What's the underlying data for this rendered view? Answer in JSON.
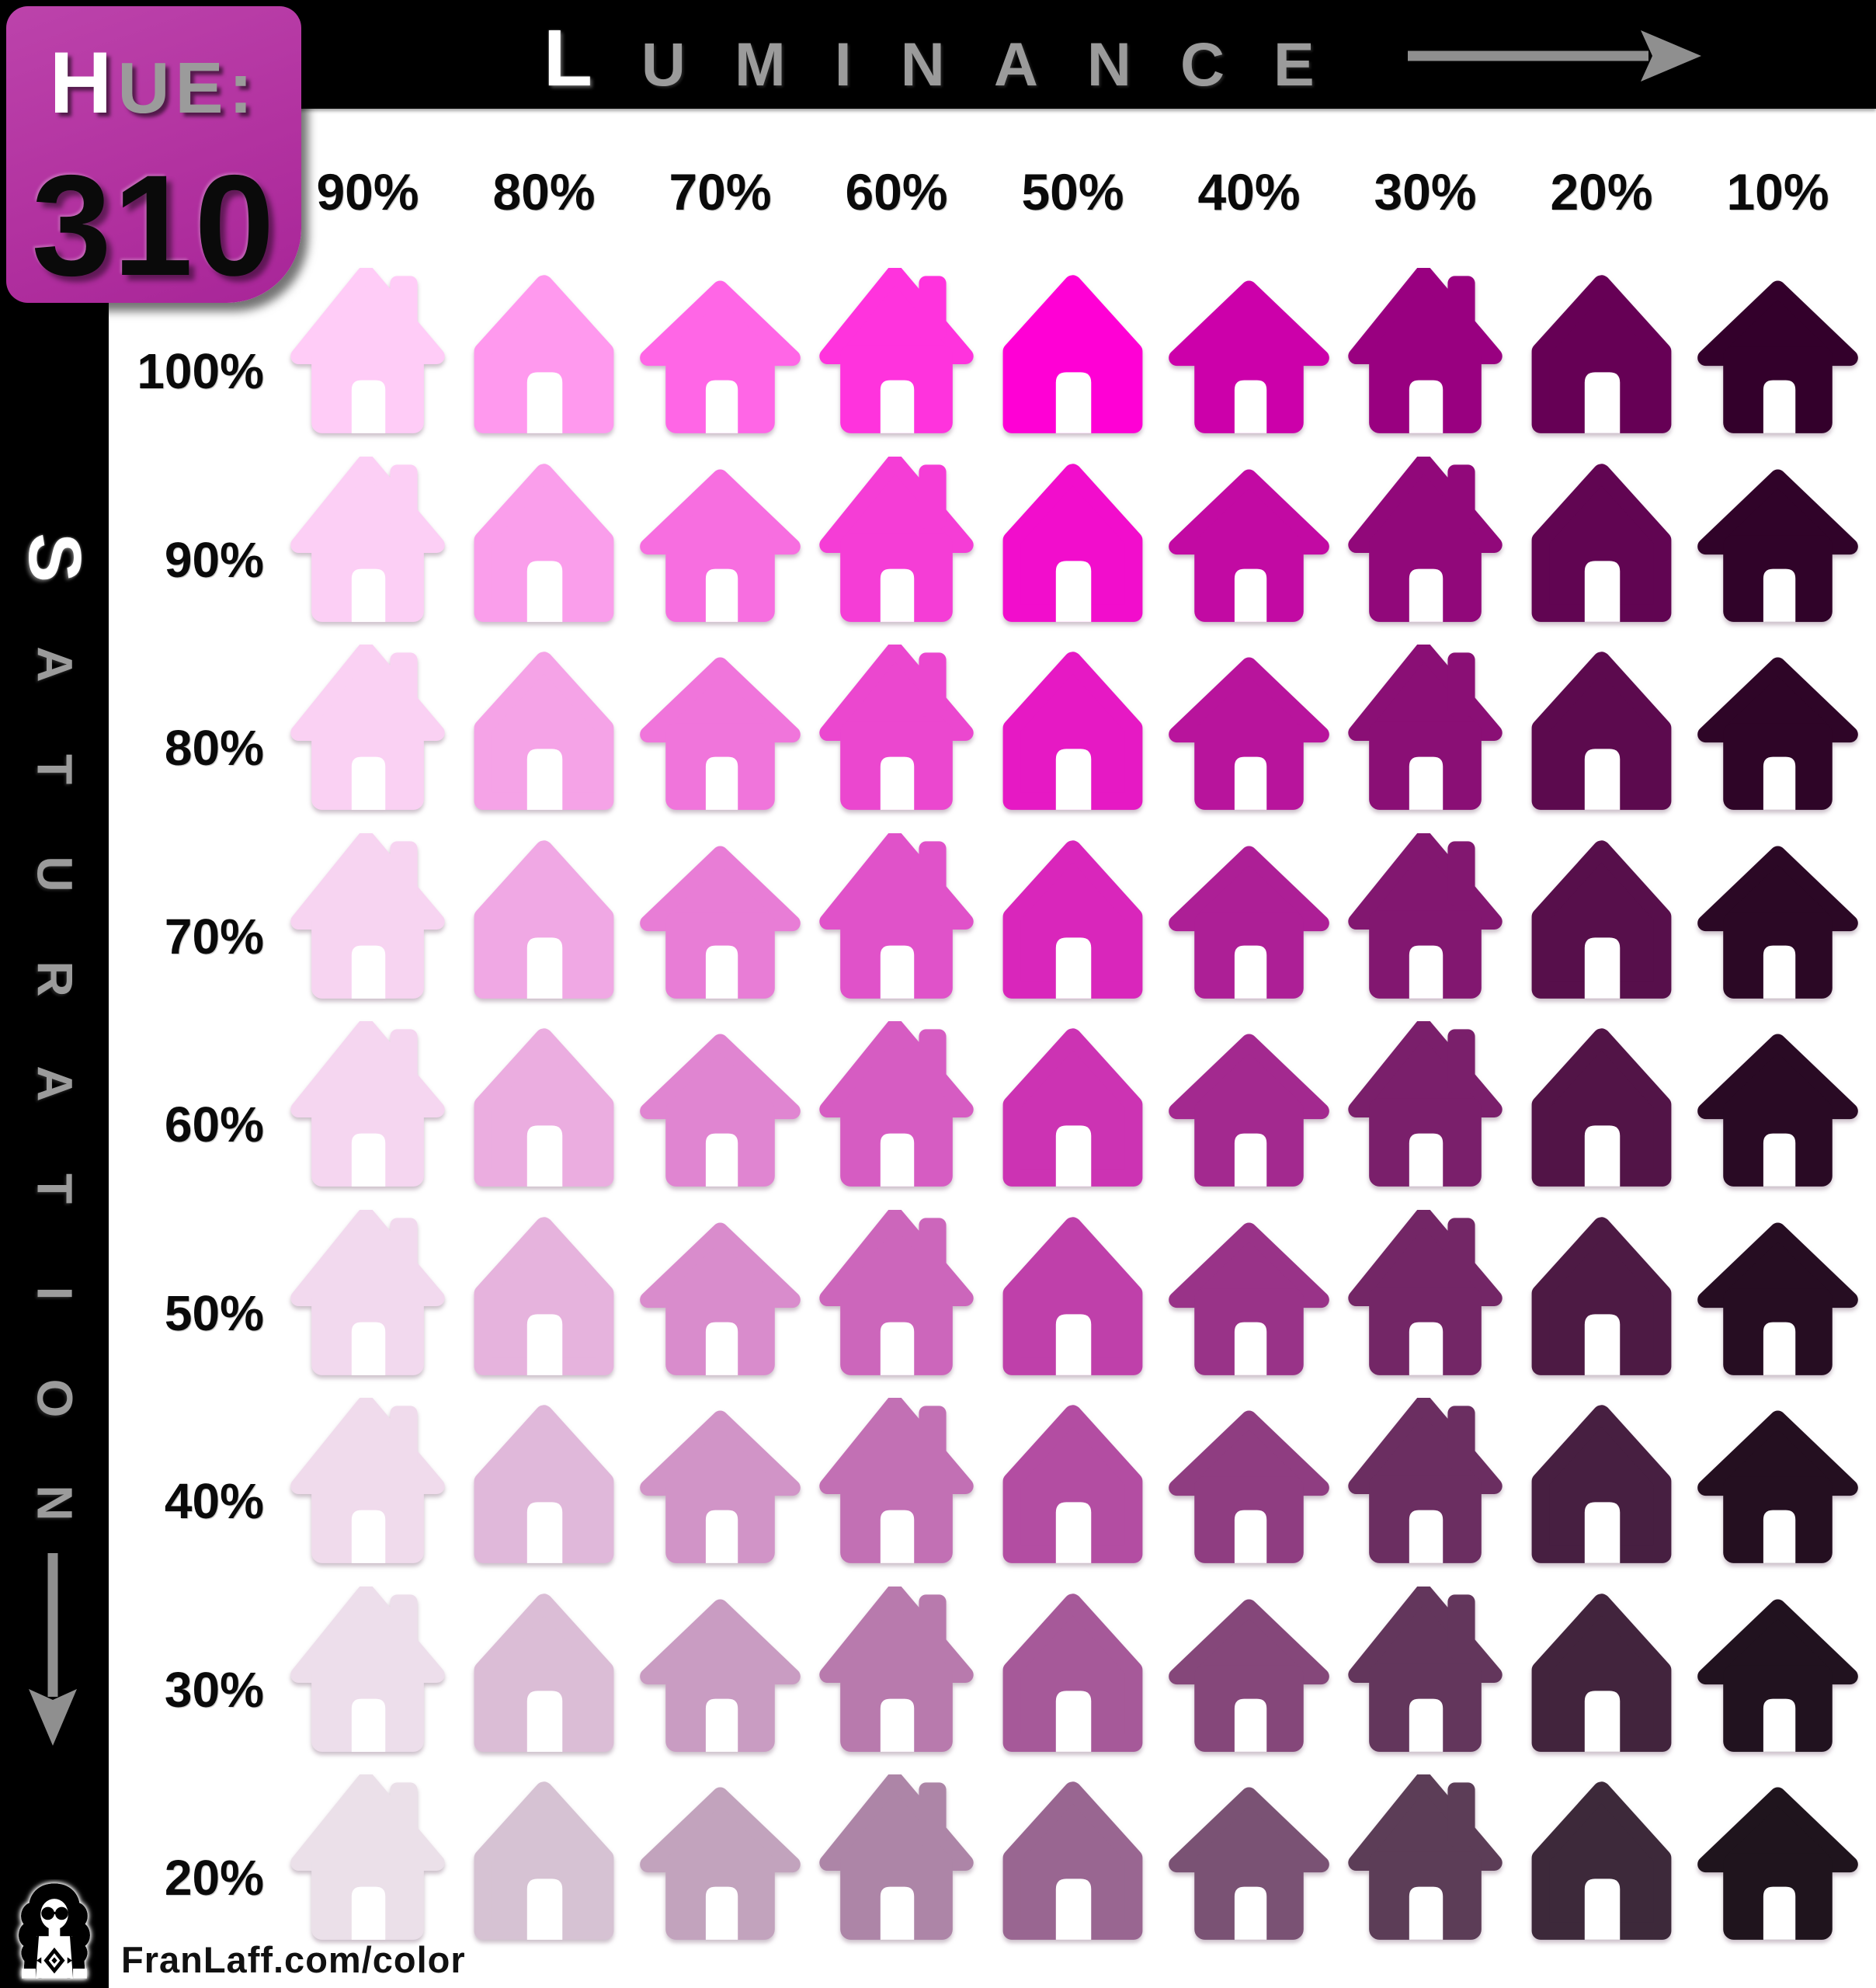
{
  "badge": {
    "label": "HUE:",
    "value": "310",
    "bg_color": "#b232a0"
  },
  "axis_top": {
    "label": "LUMINANCE",
    "arrow": "right"
  },
  "axis_left": {
    "label": "SATURATION",
    "arrow": "down"
  },
  "footer": {
    "url": "FranLaff.com/color",
    "logo": "woman-with-sunglasses-avatar"
  },
  "colors": {
    "accent_magenta": "#b232a0",
    "axis_text_gray": "#9b9b9b",
    "first_letter_white": "#ffffff",
    "chrome_black": "#000000",
    "label_black": "#0a0a0a",
    "background_white": "#ffffff"
  },
  "chart_data": {
    "type": "heatmap",
    "title": "Hue: 310",
    "xlabel": "Luminance",
    "ylabel": "Saturation",
    "hue": 310,
    "x_tick_labels": [
      "90%",
      "80%",
      "70%",
      "60%",
      "50%",
      "40%",
      "30%",
      "20%",
      "10%"
    ],
    "y_tick_labels": [
      "100%",
      "90%",
      "80%",
      "70%",
      "60%",
      "50%",
      "40%",
      "30%",
      "20%"
    ],
    "luminance_values": [
      90,
      80,
      70,
      60,
      50,
      40,
      30,
      20,
      10
    ],
    "saturation_values": [
      100,
      90,
      80,
      70,
      60,
      50,
      40,
      30,
      20
    ],
    "glyph": "house",
    "glyph_variant_cycle": [
      "chimney",
      "rounded",
      "pointed"
    ],
    "cell_color_formula": "hsl(310, saturation%, luminance%)",
    "legend_position": "none",
    "grid": "off",
    "cells": [
      [
        "hsl(310,100%,90%)",
        "hsl(310,100%,80%)",
        "hsl(310,100%,70%)",
        "hsl(310,100%,60%)",
        "hsl(310,100%,50%)",
        "hsl(310,100%,40%)",
        "hsl(310,100%,30%)",
        "hsl(310,100%,20%)",
        "hsl(310,100%,10%)"
      ],
      [
        "hsl(310,90%,90%)",
        "hsl(310,90%,80%)",
        "hsl(310,90%,70%)",
        "hsl(310,90%,60%)",
        "hsl(310,90%,50%)",
        "hsl(310,90%,40%)",
        "hsl(310,90%,30%)",
        "hsl(310,90%,20%)",
        "hsl(310,90%,10%)"
      ],
      [
        "hsl(310,80%,90%)",
        "hsl(310,80%,80%)",
        "hsl(310,80%,70%)",
        "hsl(310,80%,60%)",
        "hsl(310,80%,50%)",
        "hsl(310,80%,40%)",
        "hsl(310,80%,30%)",
        "hsl(310,80%,20%)",
        "hsl(310,80%,10%)"
      ],
      [
        "hsl(310,70%,90%)",
        "hsl(310,70%,80%)",
        "hsl(310,70%,70%)",
        "hsl(310,70%,60%)",
        "hsl(310,70%,50%)",
        "hsl(310,70%,40%)",
        "hsl(310,70%,30%)",
        "hsl(310,70%,20%)",
        "hsl(310,70%,10%)"
      ],
      [
        "hsl(310,60%,90%)",
        "hsl(310,60%,80%)",
        "hsl(310,60%,70%)",
        "hsl(310,60%,60%)",
        "hsl(310,60%,50%)",
        "hsl(310,60%,40%)",
        "hsl(310,60%,30%)",
        "hsl(310,60%,20%)",
        "hsl(310,60%,10%)"
      ],
      [
        "hsl(310,50%,90%)",
        "hsl(310,50%,80%)",
        "hsl(310,50%,70%)",
        "hsl(310,50%,60%)",
        "hsl(310,50%,50%)",
        "hsl(310,50%,40%)",
        "hsl(310,50%,30%)",
        "hsl(310,50%,20%)",
        "hsl(310,50%,10%)"
      ],
      [
        "hsl(310,40%,90%)",
        "hsl(310,40%,80%)",
        "hsl(310,40%,70%)",
        "hsl(310,40%,60%)",
        "hsl(310,40%,50%)",
        "hsl(310,40%,40%)",
        "hsl(310,40%,30%)",
        "hsl(310,40%,20%)",
        "hsl(310,40%,10%)"
      ],
      [
        "hsl(310,30%,90%)",
        "hsl(310,30%,80%)",
        "hsl(310,30%,70%)",
        "hsl(310,30%,60%)",
        "hsl(310,30%,50%)",
        "hsl(310,30%,40%)",
        "hsl(310,30%,30%)",
        "hsl(310,30%,20%)",
        "hsl(310,30%,10%)"
      ],
      [
        "hsl(310,20%,90%)",
        "hsl(310,20%,80%)",
        "hsl(310,20%,70%)",
        "hsl(310,20%,60%)",
        "hsl(310,20%,50%)",
        "hsl(310,20%,40%)",
        "hsl(310,20%,30%)",
        "hsl(310,20%,20%)",
        "hsl(310,20%,10%)"
      ]
    ]
  }
}
